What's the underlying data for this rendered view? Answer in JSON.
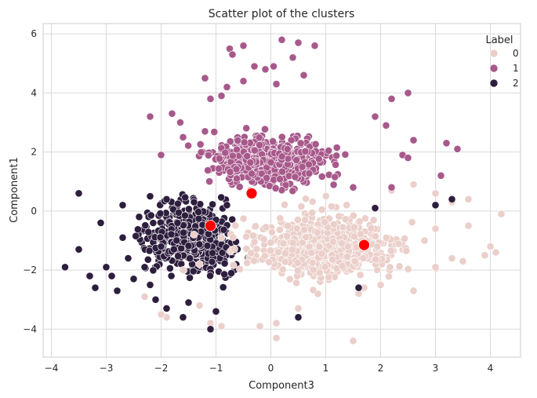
{
  "chart_data": {
    "type": "scatter",
    "title": "Scatter plot of the clusters",
    "xlabel": "Component3",
    "ylabel": "Component1",
    "xlim": [
      -4.15,
      4.55
    ],
    "ylim": [
      -4.95,
      6.35
    ],
    "xticks": [
      -4,
      -3,
      -2,
      -1,
      0,
      1,
      2,
      3,
      4
    ],
    "yticks": [
      -4,
      -2,
      0,
      2,
      4,
      6
    ],
    "grid": true,
    "legend": {
      "title": "Label",
      "placement": "top-right",
      "entries": [
        {
          "label": "0",
          "color": "#ebcfca"
        },
        {
          "label": "1",
          "color": "#a8598b"
        },
        {
          "label": "2",
          "color": "#2d1e3e"
        }
      ]
    },
    "series": [
      {
        "name": "0",
        "color": "#ebcfca",
        "center": [
          1.7,
          -1.15
        ],
        "points": [
          [
            4.2,
            -0.1
          ],
          [
            4.1,
            -1.4
          ],
          [
            3.9,
            -1.5
          ],
          [
            4.0,
            -1.2
          ],
          [
            3.6,
            -0.5
          ],
          [
            3.5,
            -1.7
          ],
          [
            3.3,
            -1.6
          ],
          [
            3.0,
            -1.9
          ],
          [
            2.6,
            -2.7
          ],
          [
            2.0,
            -2.5
          ],
          [
            1.6,
            -2.8
          ],
          [
            1.7,
            -2.6
          ],
          [
            1.5,
            -4.4
          ],
          [
            0.5,
            -3.3
          ],
          [
            0.1,
            -4.3
          ],
          [
            0.1,
            -3.8
          ],
          [
            -0.2,
            -3.9
          ],
          [
            -0.9,
            -3.9
          ],
          [
            -1.1,
            -3.8
          ],
          [
            -1.9,
            -3.6
          ],
          [
            -2.0,
            -3.5
          ],
          [
            -1.3,
            -3.2
          ],
          [
            -2.3,
            -2.9
          ],
          [
            -1.3,
            -1.8
          ],
          [
            -1.4,
            -0.8
          ],
          [
            -0.9,
            -0.9
          ],
          [
            -1.6,
            -2.0
          ],
          [
            2.2,
            0.7
          ],
          [
            2.6,
            0.9
          ],
          [
            3.0,
            0.6
          ],
          [
            3.6,
            0.4
          ],
          [
            3.3,
            0.3
          ],
          [
            3.0,
            -0.6
          ],
          [
            2.8,
            -1.0
          ]
        ]
      },
      {
        "name": "1",
        "color": "#a8598b",
        "center": [
          -0.35,
          0.6
        ],
        "points": [
          [
            0.2,
            5.8
          ],
          [
            0.5,
            5.7
          ],
          [
            0.8,
            5.6
          ],
          [
            -0.5,
            5.6
          ],
          [
            -0.75,
            5.5
          ],
          [
            -0.7,
            5.3
          ],
          [
            -0.3,
            4.9
          ],
          [
            -0.1,
            4.8
          ],
          [
            0.05,
            4.9
          ],
          [
            0.4,
            5.2
          ],
          [
            0.1,
            4.3
          ],
          [
            -0.5,
            4.4
          ],
          [
            -0.8,
            4.2
          ],
          [
            -1.2,
            4.5
          ],
          [
            -1.1,
            3.8
          ],
          [
            -0.9,
            3.9
          ],
          [
            0.6,
            4.6
          ],
          [
            -1.8,
            3.3
          ],
          [
            -2.2,
            3.2
          ],
          [
            -1.65,
            3.0
          ],
          [
            2.2,
            3.8
          ],
          [
            2.5,
            4.0
          ],
          [
            1.9,
            3.2
          ],
          [
            2.1,
            2.9
          ],
          [
            3.2,
            2.3
          ],
          [
            3.4,
            2.1
          ],
          [
            2.6,
            2.4
          ],
          [
            2.4,
            1.9
          ],
          [
            2.5,
            1.8
          ],
          [
            3.1,
            1.2
          ],
          [
            1.5,
            0.8
          ],
          [
            2.2,
            0.8
          ],
          [
            -2.0,
            1.9
          ],
          [
            -1.6,
            2.5
          ],
          [
            -1.2,
            2.7
          ]
        ]
      },
      {
        "name": "2",
        "color": "#2d1e3e",
        "center": [
          -1.1,
          -0.5
        ],
        "points": [
          [
            -3.75,
            -1.9
          ],
          [
            -3.5,
            0.6
          ],
          [
            -3.5,
            -1.3
          ],
          [
            -3.3,
            -2.2
          ],
          [
            -3.1,
            -0.4
          ],
          [
            -3.2,
            -2.6
          ],
          [
            -3.0,
            -1.9
          ],
          [
            -2.9,
            -2.2
          ],
          [
            -2.8,
            -2.7
          ],
          [
            -2.7,
            0.2
          ],
          [
            -2.7,
            -0.9
          ],
          [
            -2.6,
            -1.6
          ],
          [
            -2.5,
            -2.3
          ],
          [
            -2.3,
            -1.9
          ],
          [
            -2.2,
            -2.5
          ],
          [
            -2.1,
            -3.0
          ],
          [
            -1.9,
            -3.3
          ],
          [
            -1.6,
            -3.6
          ],
          [
            -1.5,
            -3.1
          ],
          [
            -1.0,
            -3.4
          ],
          [
            -1.1,
            -4.0
          ],
          [
            0.5,
            -3.6
          ],
          [
            1.6,
            -2.6
          ],
          [
            3.3,
            0.4
          ],
          [
            3.0,
            0.2
          ],
          [
            1.9,
            0.1
          ],
          [
            -2.4,
            -0.2
          ],
          [
            -2.0,
            -1.2
          ],
          [
            -1.7,
            -0.4
          ],
          [
            -1.4,
            0.3
          ],
          [
            -1.0,
            -0.3
          ],
          [
            -0.8,
            0.2
          ],
          [
            -1.9,
            0.4
          ],
          [
            -2.2,
            0.5
          ]
        ]
      }
    ]
  }
}
